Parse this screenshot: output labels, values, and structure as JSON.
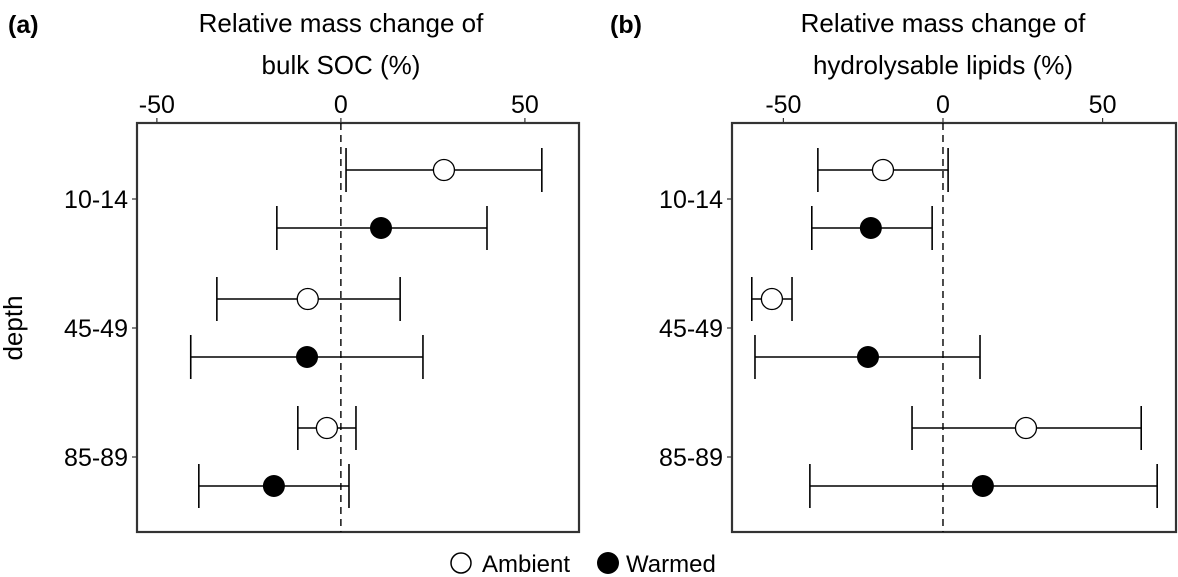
{
  "chart_data": [
    {
      "type": "scatter",
      "subtype": "point-with-errorbars",
      "panel_label": "(a)",
      "title_lines": [
        "Relative mass change of",
        "bulk SOC (%)"
      ],
      "xlabel": "Relative mass change of bulk SOC (%)",
      "ylabel": "depth",
      "x_axis_position": "top",
      "xlim": [
        -55.4,
        64.7
      ],
      "xticks": [
        -50,
        0,
        50
      ],
      "xtick_labels": [
        "-50",
        "0",
        "50"
      ],
      "reference_line": {
        "x": 0,
        "style": "dashed"
      },
      "categories": [
        "10-14",
        "45-49",
        "85-89"
      ],
      "grid": false,
      "series": [
        {
          "name": "Ambient",
          "marker": "open-circle",
          "values": [
            28.0,
            -9.0,
            -3.8
          ],
          "lower": [
            1.4,
            -33.7,
            -11.7
          ],
          "upper": [
            54.6,
            16.1,
            4.1
          ]
        },
        {
          "name": "Warmed",
          "marker": "filled-circle",
          "values": [
            10.9,
            -9.2,
            -18.2
          ],
          "lower": [
            -17.4,
            -40.8,
            -38.6
          ],
          "upper": [
            39.7,
            22.3,
            2.2
          ]
        }
      ]
    },
    {
      "type": "scatter",
      "subtype": "point-with-errorbars",
      "panel_label": "(b)",
      "title_lines": [
        "Relative mass change of",
        "hydrolysable lipids (%)"
      ],
      "xlabel": "Relative mass change of hydrolysable lipids (%)",
      "ylabel": "",
      "x_axis_position": "top",
      "xlim": [
        -66.1,
        73.0
      ],
      "xticks": [
        -50,
        0,
        50
      ],
      "xtick_labels": [
        "-50",
        "0",
        "50"
      ],
      "reference_line": {
        "x": 0,
        "style": "dashed"
      },
      "categories": [
        "10-14",
        "45-49",
        "85-89"
      ],
      "grid": false,
      "series": [
        {
          "name": "Ambient",
          "marker": "open-circle",
          "values": [
            -18.8,
            -53.6,
            26.0
          ],
          "lower": [
            -39.2,
            -59.9,
            -9.7
          ],
          "upper": [
            1.6,
            -47.3,
            62.1
          ]
        },
        {
          "name": "Warmed",
          "marker": "filled-circle",
          "values": [
            -22.6,
            -23.5,
            12.5
          ],
          "lower": [
            -41.1,
            -58.9,
            -41.7
          ],
          "upper": [
            -3.4,
            11.6,
            67.1
          ]
        }
      ]
    }
  ],
  "legend": {
    "placement": "bottom-center",
    "items": [
      {
        "label": "Ambient",
        "marker": "open-circle"
      },
      {
        "label": "Warmed",
        "marker": "filled-circle"
      }
    ]
  },
  "colors": {
    "frame": "#333333",
    "ink": "#000000",
    "open_fill": "#ffffff"
  }
}
